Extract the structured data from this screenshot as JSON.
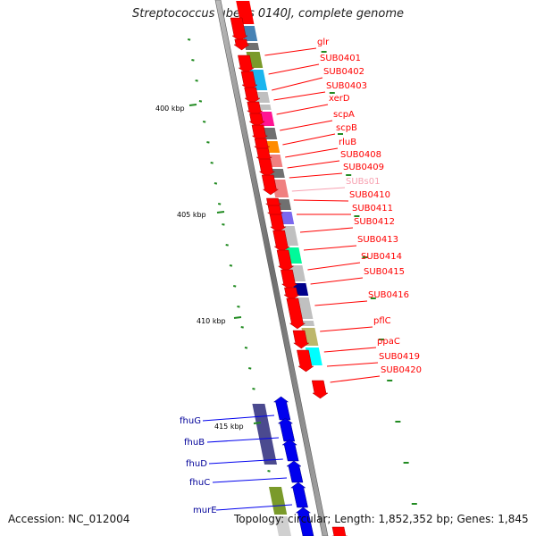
{
  "title": "Streptococcus uberis 0140J, complete genome",
  "accession": "Accession: NC_012004",
  "summary": "Topology: circular; Length: 1,852,352 bp; Genes: 1,845",
  "colors": {
    "forward_gene": "#ff0000",
    "reverse_gene": "#0000ee",
    "backbone": "#888888",
    "tick": "#228b22",
    "subs01": "#f7a0b0"
  },
  "kbp_ticks": [
    "400 kbp",
    "405 kbp",
    "410 kbp",
    "415 kbp"
  ],
  "red_labels": [
    "glr",
    "SUB0401",
    "SUB0402",
    "SUB0403",
    "xerD",
    "scpA",
    "scpB",
    "rluB",
    "SUB0408",
    "SUB0409",
    "SUBs01",
    "SUB0410",
    "SUB0411",
    "SUB0412",
    "SUB0413",
    "SUB0414",
    "SUB0415",
    "SUB0416",
    "pflC",
    "ppaC",
    "SUB0419",
    "SUB0420"
  ],
  "blue_labels": [
    "fhuG",
    "fhuB",
    "fhuD",
    "fhuC",
    "murE"
  ]
}
